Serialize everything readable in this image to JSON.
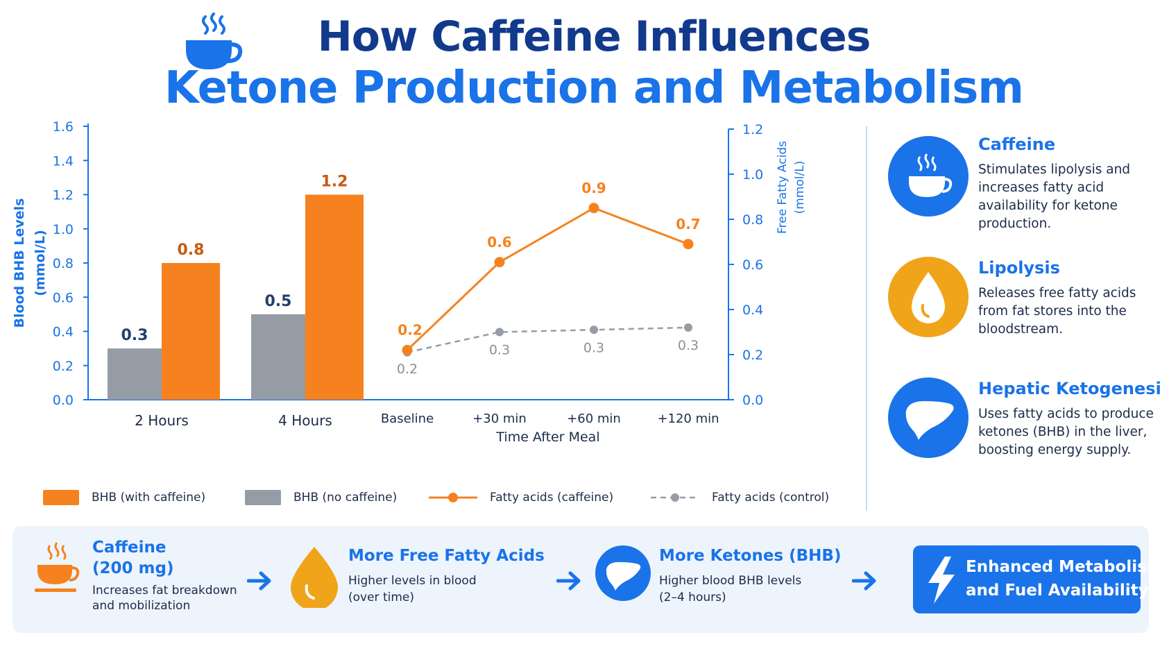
{
  "header": {
    "title_line1": "How Caffeine Influences",
    "title_line2": "Ketone Production and Metabolism"
  },
  "colors": {
    "orange": "#f5821f",
    "orange_label": "#c85a10",
    "gray": "#969ca6",
    "blue": "#1a73e8",
    "navy": "#123a8c"
  },
  "chart_data": [
    {
      "type": "bar",
      "categories": [
        "2 Hours",
        "4 Hours"
      ],
      "series": [
        {
          "name": "BHB (no caffeine)",
          "values": [
            0.3,
            0.5
          ],
          "labels": [
            "0.3",
            "0.5"
          ]
        },
        {
          "name": "BHB (with caffeine)",
          "values": [
            0.8,
            1.2
          ],
          "labels": [
            "0.8",
            "1.2"
          ]
        }
      ],
      "ylabel": "Blood BHB Levels (mmol/L)",
      "ylim": [
        0,
        1.6
      ],
      "yticks": [
        "0.0",
        "0.2",
        "0.4",
        "0.6",
        "0.8",
        "1.0",
        "1.2",
        "1.4",
        "1.6"
      ],
      "ytick_values": [
        0,
        0.2,
        0.4,
        0.6,
        0.8,
        1.0,
        1.2,
        1.4,
        1.6
      ]
    },
    {
      "type": "line",
      "categories": [
        "Baseline",
        "+30 min",
        "+60 min",
        "+120 min"
      ],
      "xlabel": "Time After Meal",
      "ylabel": "Free Fatty Acids (mmol/L)",
      "ylim": [
        0,
        1.2
      ],
      "yticks": [
        "0.0",
        "0.2",
        "0.4",
        "0.6",
        "0.8",
        "1.0",
        "1.2"
      ],
      "ytick_values": [
        0,
        0.2,
        0.4,
        0.6,
        0.8,
        1.0,
        1.2
      ],
      "series": [
        {
          "name": "Fatty acids (caffeine)",
          "values": [
            0.22,
            0.61,
            0.85,
            0.69
          ],
          "labels": [
            "0.2",
            "0.6",
            "0.9",
            "0.7"
          ],
          "style": "solid"
        },
        {
          "name": "Fatty acids (control)",
          "values": [
            0.21,
            0.3,
            0.31,
            0.32
          ],
          "labels": [
            "0.2",
            "0.3",
            "0.3",
            "0.3"
          ],
          "style": "dashed"
        }
      ]
    }
  ],
  "legend": {
    "bhb_caffeine": "BHB (with caffeine)",
    "bhb_none": "BHB (no caffeine)",
    "fa_caffeine": "Fatty acids (caffeine)",
    "fa_control": "Fatty acids (control)"
  },
  "sidebar": [
    {
      "title": "Caffeine",
      "desc": "Stimulates lipolysis and increases fatty acid availability for ketone production.",
      "icon": "coffee-cup-icon"
    },
    {
      "title": "Lipolysis",
      "desc": "Releases free fatty acids from fat stores into the bloodstream.",
      "icon": "droplet-icon"
    },
    {
      "title": "Hepatic Ketogenesis",
      "desc": "Uses fatty acids to produce ketones (BHB) in the liver, boosting energy supply.",
      "icon": "liver-icon"
    }
  ],
  "flow": {
    "step1": {
      "title_a": "Caffeine",
      "title_b": "(200 mg)",
      "desc_a": "Increases fat breakdown",
      "desc_b": "and mobilization",
      "icon": "coffee-cup-icon"
    },
    "step2": {
      "title": "More Free Fatty Acids",
      "desc_a": "Higher levels in blood",
      "desc_b": "(over time)",
      "icon": "droplet-icon"
    },
    "step3": {
      "title": "More Ketones (BHB)",
      "desc_a": "Higher blood BHB levels",
      "desc_b": "(2–4 hours)",
      "icon": "liver-icon"
    },
    "final": {
      "line1": "Enhanced Metabolism",
      "line2": "and Fuel Availability",
      "icon": "lightning-icon"
    }
  }
}
